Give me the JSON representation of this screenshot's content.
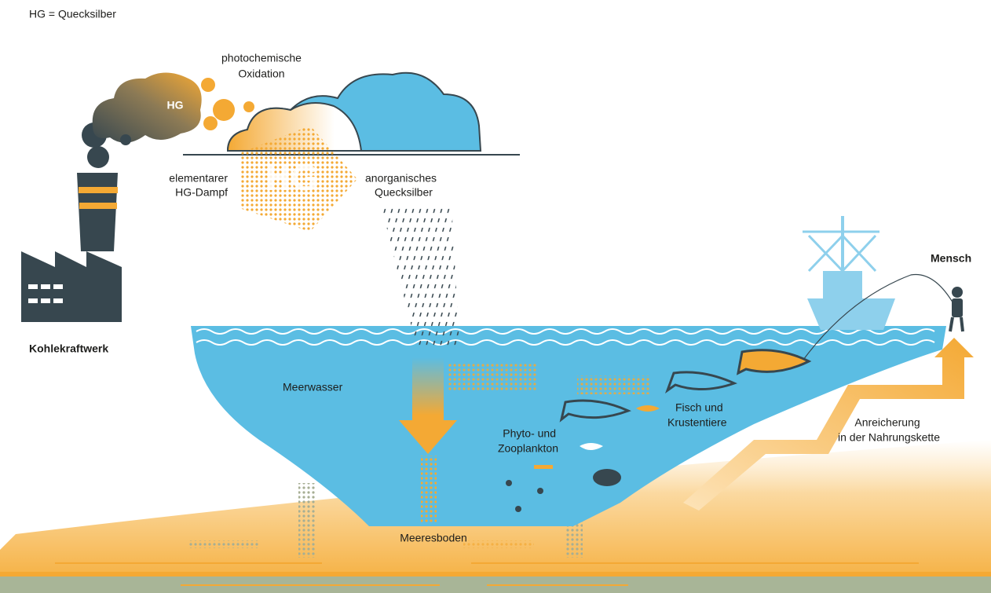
{
  "legend": "HG = Quecksilber",
  "labels": {
    "photo_oxidation": [
      "photochemische",
      "Oxidation"
    ],
    "smoke_hg": "HG",
    "arrow_hg": "HG",
    "elemental_vapor": [
      "elementarer",
      "HG-Dampf"
    ],
    "inorganic_mercury": [
      "anorganisches",
      "Quecksilber"
    ],
    "human": "Mensch",
    "power_plant": "Kohlekraftwerk",
    "seawater": "Meerwasser",
    "fish": [
      "Fisch und",
      "Krustentiere"
    ],
    "plankton": [
      "Phyto- und",
      "Zooplankton"
    ],
    "enrichment": [
      "Anreicherung",
      "in der Nahrungskette"
    ],
    "seabed": "Meeresboden"
  }
}
